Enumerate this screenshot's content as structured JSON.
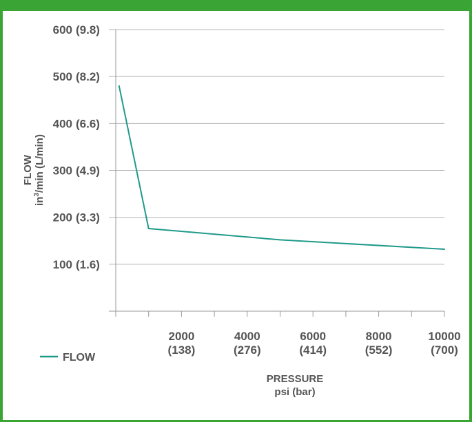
{
  "chart_data": {
    "type": "line",
    "title": "",
    "xlabel": "PRESSURE",
    "xlabel_units": "psi (bar)",
    "ylabel": "FLOW",
    "ylabel_units_prefix": "in",
    "ylabel_units_sup": "3",
    "ylabel_units_suffix": "/min (L/min)",
    "xlim": [
      0,
      10000
    ],
    "ylim": [
      0,
      600
    ],
    "grid": "horizontal",
    "legend_position": "bottom-left",
    "y_ticks": [
      {
        "value": 100,
        "label": "100",
        "alt": "(1.6)"
      },
      {
        "value": 200,
        "label": "200",
        "alt": "(3.3)"
      },
      {
        "value": 300,
        "label": "300",
        "alt": "(4.9)"
      },
      {
        "value": 400,
        "label": "400",
        "alt": "(6.6)"
      },
      {
        "value": 500,
        "label": "500",
        "alt": "(8.2)"
      },
      {
        "value": 600,
        "label": "600",
        "alt": "(9.8)"
      }
    ],
    "x_ticks": [
      {
        "value": 2000,
        "label": "2000",
        "alt": "(138)"
      },
      {
        "value": 4000,
        "label": "4000",
        "alt": "(276)"
      },
      {
        "value": 6000,
        "label": "6000",
        "alt": "(414)"
      },
      {
        "value": 8000,
        "label": "8000",
        "alt": "(552)"
      },
      {
        "value": 10000,
        "label": "10000",
        "alt": "(700)"
      }
    ],
    "series": [
      {
        "name": "FLOW",
        "color": "#1f9a8a",
        "x": [
          100,
          1000,
          5000,
          10000
        ],
        "y": [
          480,
          176,
          152,
          132
        ]
      }
    ]
  }
}
